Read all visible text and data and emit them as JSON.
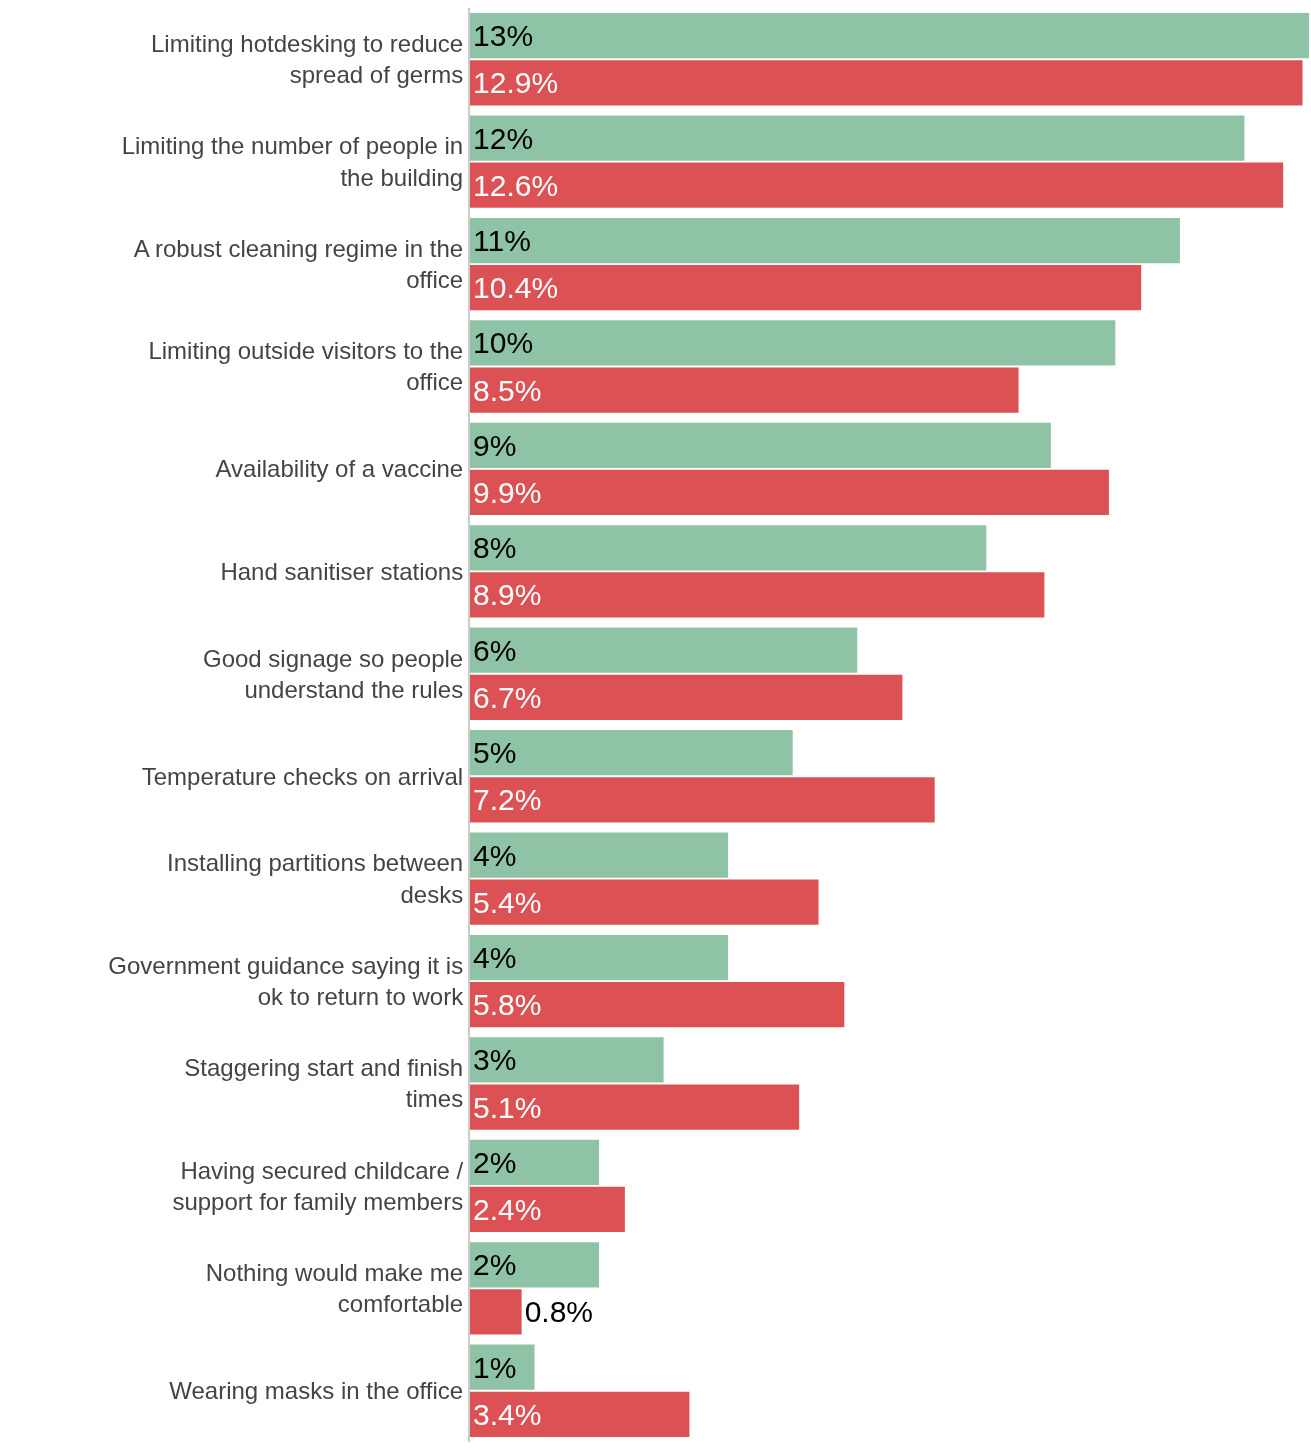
{
  "chart_data": {
    "type": "bar",
    "orientation": "horizontal",
    "grid": false,
    "categories": [
      "Limiting hotdesking to reduce spread of germs",
      "Limiting the number of people in the building",
      "A robust cleaning regime in the office",
      "Limiting outside visitors to the office",
      "Availability of a vaccine",
      "Hand sanitiser stations",
      "Good signage so people understand the rules",
      "Temperature checks on arrival",
      "Installing partitions between desks",
      "Government guidance saying it is ok to return to work",
      "Staggering start and finish times",
      "Having secured childcare / support for family members",
      "Nothing would make me comfortable",
      "Wearing masks in the office"
    ],
    "series": [
      {
        "color": "#8fc3a6",
        "values": [
          13,
          12,
          11,
          10,
          9,
          8,
          6,
          5,
          4,
          4,
          3,
          2,
          2,
          1
        ],
        "value_labels": [
          "13%",
          "12%",
          "11%",
          "10%",
          "9%",
          "8%",
          "6%",
          "5%",
          "4%",
          "4%",
          "3%",
          "2%",
          "2%",
          "1%"
        ]
      },
      {
        "color": "#dc5254",
        "values": [
          12.9,
          12.6,
          10.4,
          8.5,
          9.9,
          8.9,
          6.7,
          7.2,
          5.4,
          5.8,
          5.1,
          2.4,
          0.8,
          3.4
        ],
        "value_labels": [
          "12.9%",
          "12.6%",
          "10.4%",
          "8.5%",
          "9.9%",
          "8.9%",
          "6.7%",
          "7.2%",
          "5.4%",
          "5.8%",
          "5.1%",
          "2.4%",
          "0.8%",
          "3.4%"
        ]
      }
    ]
  }
}
